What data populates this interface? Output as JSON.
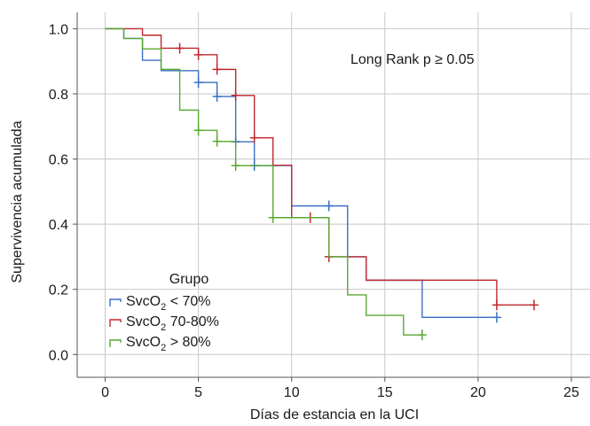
{
  "chart_data": {
    "type": "line",
    "subtype": "kaplan-meier-step",
    "xlabel": "Días de estancia en la UCI",
    "ylabel": "Supervivencia acumulada",
    "xlim": [
      -1.5,
      26
    ],
    "ylim": [
      -0.07,
      1.05
    ],
    "x_ticks": [
      0,
      5,
      10,
      15,
      20,
      25
    ],
    "y_ticks": [
      0.0,
      0.2,
      0.4,
      0.6,
      0.8,
      1.0
    ],
    "x_tick_labels": [
      "0",
      "5",
      "10",
      "15",
      "20",
      "25"
    ],
    "y_tick_labels": [
      "0.0",
      "0.2",
      "0.4",
      "0.6",
      "0.8",
      "1.0"
    ],
    "grid": true,
    "annotation": "Long Rank p ≥ 0.05",
    "legend": {
      "title": "Grupo",
      "position": "bottom-left",
      "entries": [
        {
          "base": "SvcO",
          "sub": "2",
          "rest": " < 70%"
        },
        {
          "base": "SvcO",
          "sub": "2",
          "rest": " 70-80%"
        },
        {
          "base": "SvcO",
          "sub": "2",
          "rest": " > 80%"
        }
      ]
    },
    "series": [
      {
        "name": "SvcO2 < 70%",
        "color": "#3a6fc4",
        "steps": [
          [
            0,
            1.0
          ],
          [
            1,
            0.97
          ],
          [
            2,
            0.903
          ],
          [
            3,
            0.871
          ],
          [
            5,
            0.835
          ],
          [
            6,
            0.792
          ],
          [
            7,
            0.653
          ],
          [
            8,
            0.58
          ],
          [
            10,
            0.456
          ],
          [
            13,
            0.3
          ],
          [
            14,
            0.228
          ],
          [
            17,
            0.114
          ],
          [
            21,
            0.114
          ]
        ],
        "censored": [
          [
            5,
            0.835
          ],
          [
            6,
            0.792
          ],
          [
            7,
            0.653
          ],
          [
            8,
            0.58
          ],
          [
            12,
            0.456
          ],
          [
            21,
            0.114
          ]
        ]
      },
      {
        "name": "SvcO2 70-80%",
        "color": "#c0282d",
        "steps": [
          [
            0,
            1.0
          ],
          [
            2,
            0.98
          ],
          [
            3,
            0.94
          ],
          [
            5,
            0.92
          ],
          [
            6,
            0.875
          ],
          [
            7,
            0.795
          ],
          [
            8,
            0.665
          ],
          [
            9,
            0.581
          ],
          [
            10,
            0.42
          ],
          [
            12,
            0.3
          ],
          [
            14,
            0.228
          ],
          [
            21,
            0.152
          ],
          [
            23,
            0.152
          ]
        ],
        "censored": [
          [
            4,
            0.94
          ],
          [
            5,
            0.92
          ],
          [
            6,
            0.875
          ],
          [
            7,
            0.795
          ],
          [
            8,
            0.665
          ],
          [
            11,
            0.42
          ],
          [
            12,
            0.3
          ],
          [
            21,
            0.152
          ],
          [
            23,
            0.152
          ]
        ]
      },
      {
        "name": "SvcO2 > 80%",
        "color": "#5aa832",
        "steps": [
          [
            0,
            1.0
          ],
          [
            1,
            0.97
          ],
          [
            2,
            0.938
          ],
          [
            3,
            0.875
          ],
          [
            4,
            0.75
          ],
          [
            5,
            0.688
          ],
          [
            6,
            0.654
          ],
          [
            7,
            0.58
          ],
          [
            9,
            0.42
          ],
          [
            12,
            0.3
          ],
          [
            13,
            0.183
          ],
          [
            14,
            0.12
          ],
          [
            16,
            0.06
          ],
          [
            17,
            0.06
          ]
        ],
        "censored": [
          [
            5,
            0.688
          ],
          [
            6,
            0.654
          ],
          [
            7,
            0.58
          ],
          [
            9,
            0.42
          ],
          [
            17,
            0.06
          ]
        ]
      }
    ]
  }
}
